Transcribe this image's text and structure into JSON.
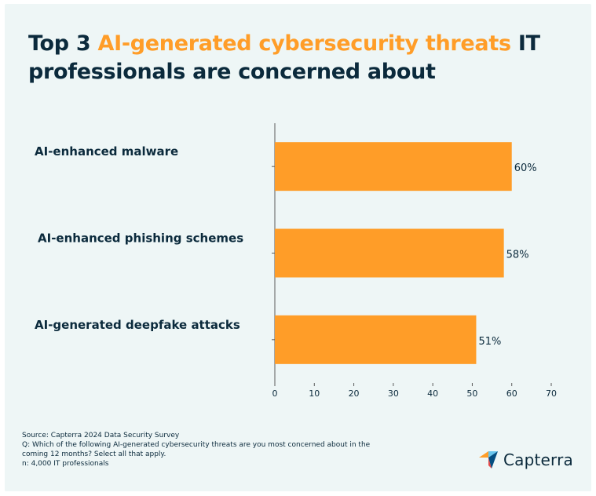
{
  "title": {
    "prefix": "Top 3",
    "highlight": "AI-generated cybersecurity threats",
    "suffix": "IT professionals are concerned about"
  },
  "colors": {
    "bar": "#ff9d28",
    "text": "#0b2a3c",
    "background": "#eef6f6",
    "axis": "#5a5a5a"
  },
  "chart_data": {
    "type": "bar",
    "orientation": "horizontal",
    "title": "Top 3 AI-generated cybersecurity threats IT professionals are concerned about",
    "categories": [
      "AI-enhanced malware",
      "AI-enhanced phishing schemes",
      "AI-generated deepfake attacks"
    ],
    "values": [
      60,
      58,
      51
    ],
    "value_labels": [
      "60%",
      "58%",
      "51%"
    ],
    "xlim": [
      0,
      70
    ],
    "xticks": [
      0,
      10,
      20,
      30,
      40,
      50,
      60,
      70
    ],
    "xlabel": "",
    "ylabel": "",
    "grid": false,
    "legend": "none"
  },
  "footnote": {
    "source": "Source: Capterra 2024 Data Security Survey",
    "question": "Q:  Which of the following AI-generated cybersecurity threats are you most concerned about in the coming 12 months? Select all that apply.",
    "sample": "n: 4,000 IT professionals"
  },
  "brand": {
    "name": "Capterra",
    "logo_icon": "capterra-arrow-icon"
  }
}
